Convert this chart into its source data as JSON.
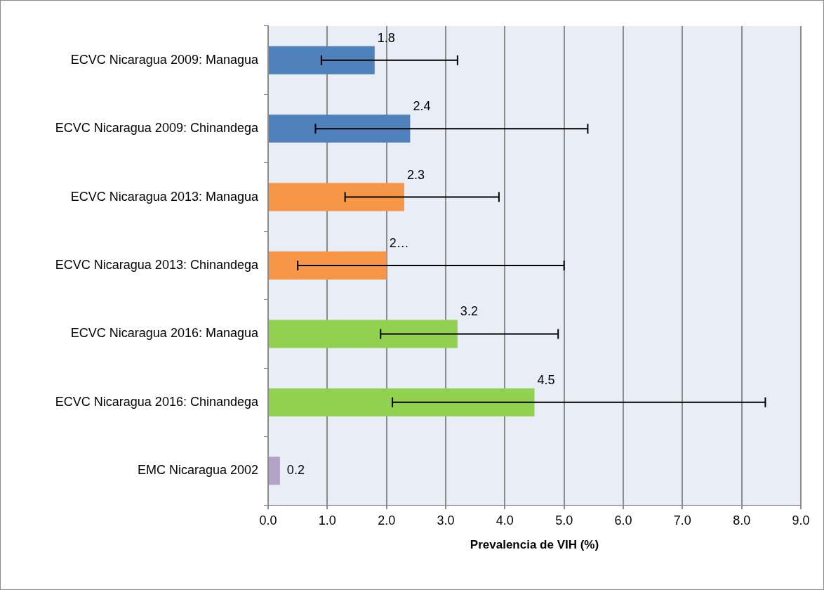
{
  "chart_data": {
    "type": "bar",
    "orientation": "horizontal",
    "xlabel": "Prevalencia de VIH (%)",
    "categories": [
      "ECVC Nicaragua 2009: Managua",
      "ECVC Nicaragua 2009: Chinandega",
      "ECVC Nicaragua 2013: Managua",
      "ECVC Nicaragua 2013: Chinandega",
      "ECVC Nicaragua 2016: Managua",
      "ECVC Nicaragua 2016: Chinandega",
      "EMC Nicaragua 2002"
    ],
    "values": [
      1.8,
      2.4,
      2.3,
      2.0,
      3.2,
      4.5,
      0.2
    ],
    "colors": [
      "#4f81bd",
      "#4f81bd",
      "#f79646",
      "#f79646",
      "#92d050",
      "#92d050",
      "#b3a2c7"
    ],
    "errors": [
      [
        0.9,
        3.2
      ],
      [
        0.8,
        5.4
      ],
      [
        1.3,
        3.9
      ],
      [
        0.5,
        5.0
      ],
      [
        1.9,
        4.9
      ],
      [
        2.1,
        8.4
      ],
      null
    ],
    "value_labels": [
      "1.8",
      "2.4",
      "2.3",
      "2…",
      "3.2",
      "4.5",
      "0.2"
    ],
    "xlim": [
      0,
      9
    ],
    "xticks": [
      {
        "value": 0,
        "label": "0.0"
      },
      {
        "value": 1,
        "label": "1.0"
      },
      {
        "value": 2,
        "label": "2.0"
      },
      {
        "value": 3,
        "label": "3.0"
      },
      {
        "value": 4,
        "label": "4.0"
      },
      {
        "value": 5,
        "label": "5.0"
      },
      {
        "value": 6,
        "label": "6.0"
      },
      {
        "value": 7,
        "label": "7.0"
      },
      {
        "value": 8,
        "label": "8.0"
      },
      {
        "value": 9,
        "label": "9.0"
      }
    ],
    "grid": "x"
  }
}
